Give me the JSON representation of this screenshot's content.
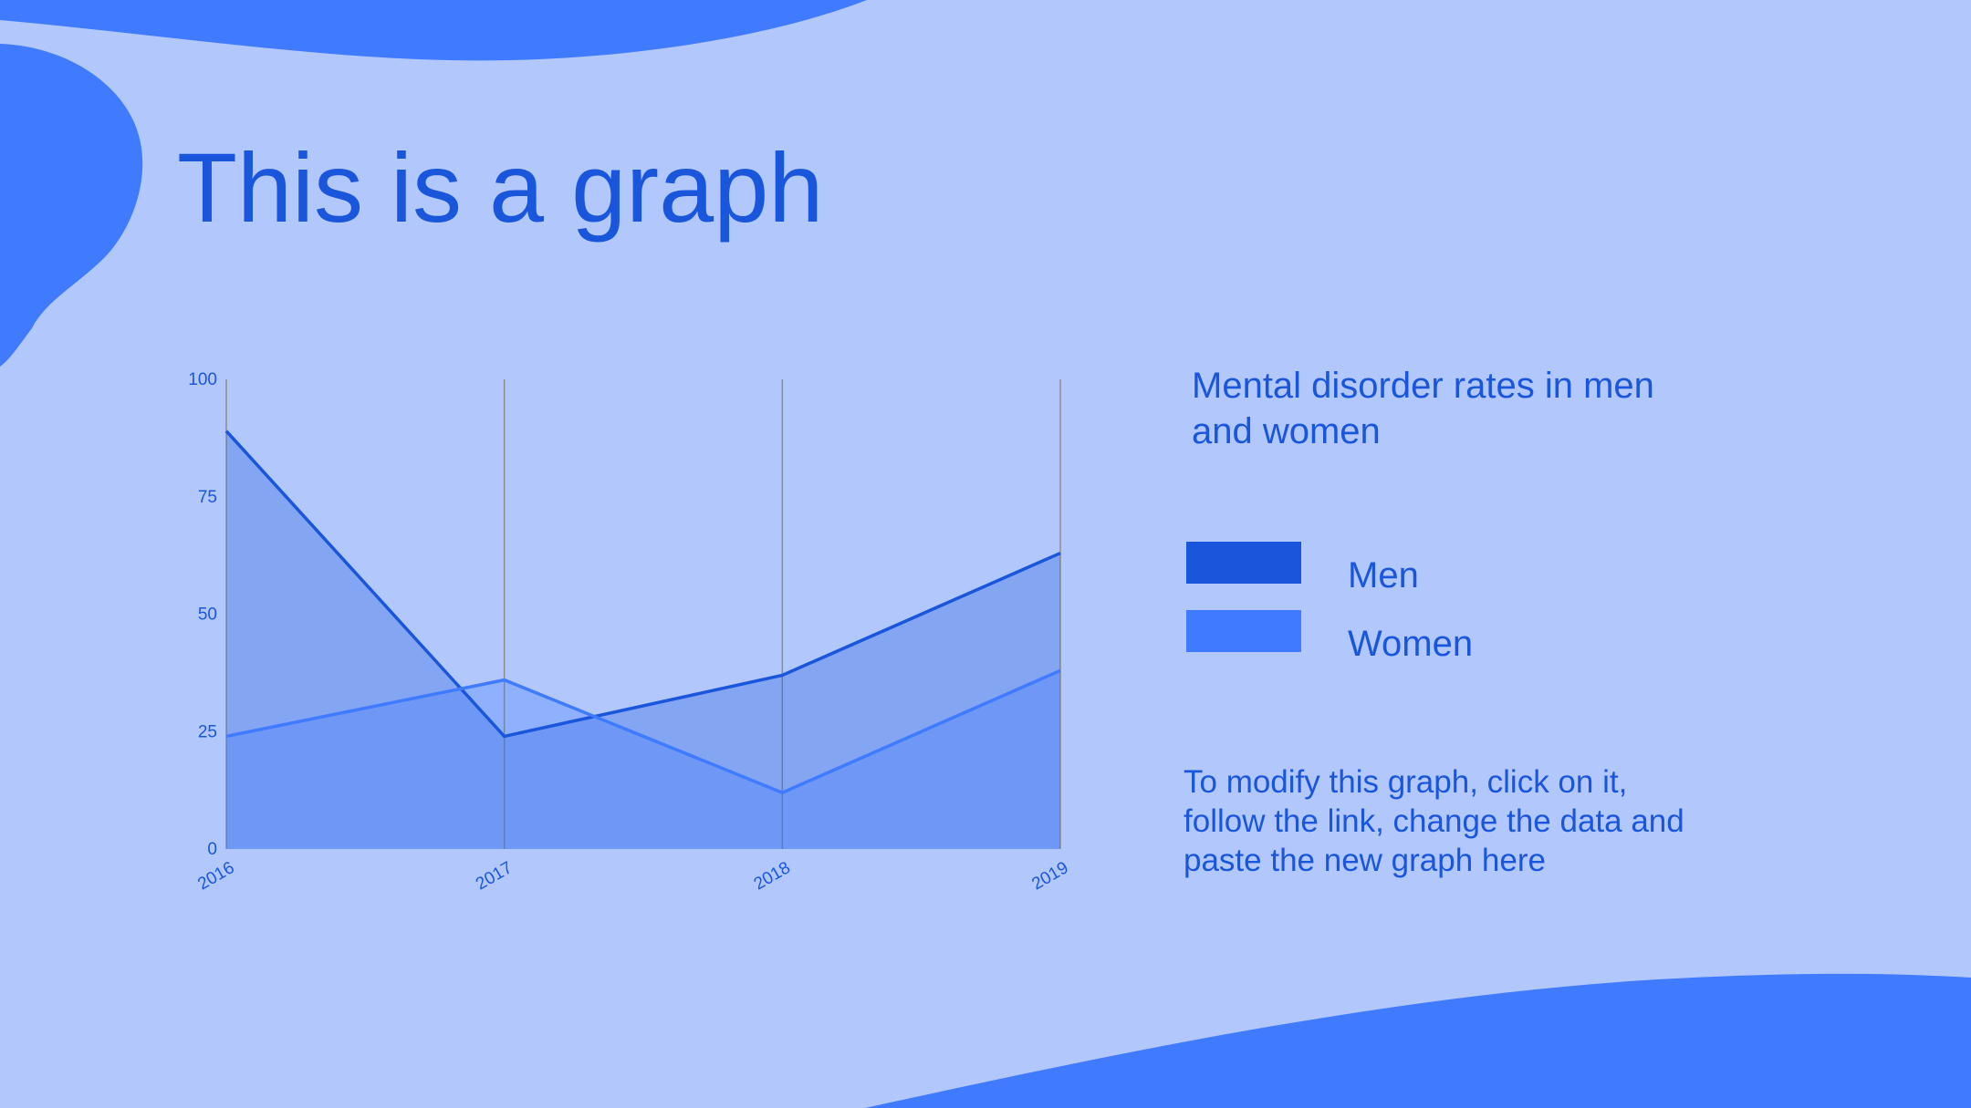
{
  "slide": {
    "title": "This is a graph",
    "note": "To modify this graph, click on it, follow the link, change the data and paste the new graph here"
  },
  "colors": {
    "background": "#b2c8fd",
    "accent_shape": "#407bff",
    "text": "#1a56db",
    "men": "#1a56db",
    "women": "#407bff",
    "gridline": "#8c8c8c"
  },
  "legend": {
    "title": "Mental disorder rates in men and women",
    "items": [
      {
        "label": "Men",
        "color": "#1a56db"
      },
      {
        "label": "Women",
        "color": "#407bff"
      }
    ]
  },
  "chart_data": {
    "type": "area",
    "x": [
      "2016",
      "2017",
      "2018",
      "2019"
    ],
    "series": [
      {
        "name": "Men",
        "values": [
          89,
          24,
          37,
          63
        ]
      },
      {
        "name": "Women",
        "values": [
          24,
          36,
          12,
          38
        ]
      }
    ],
    "ylim": [
      0,
      100
    ],
    "yticks": [
      "0",
      "25",
      "50",
      "75",
      "100"
    ],
    "grid": "vertical",
    "legend_position": "right"
  }
}
